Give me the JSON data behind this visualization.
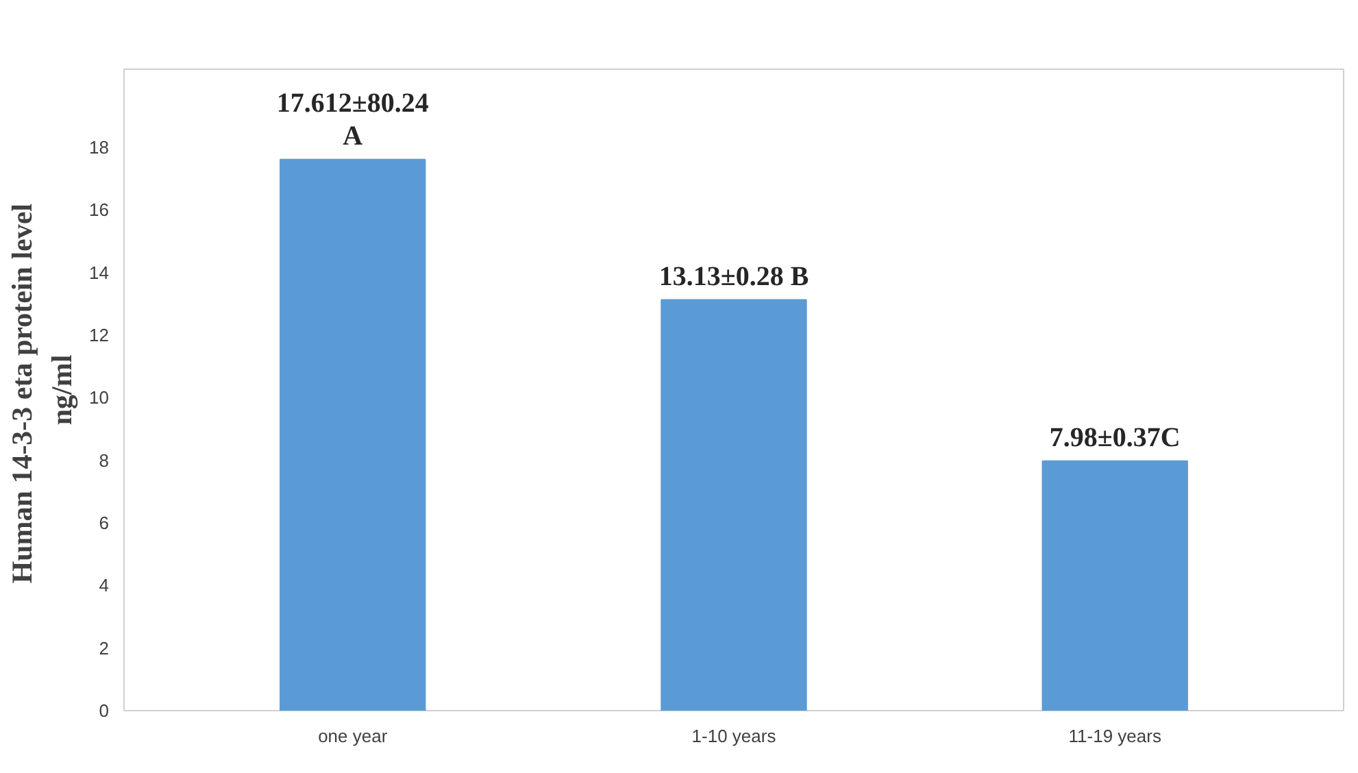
{
  "chart_data": {
    "type": "bar",
    "ylabel": "Human  14-3-3 eta protein level\nng/ml",
    "categories": [
      "one year",
      "1-10 years",
      "11-19 years"
    ],
    "values": [
      17.612,
      13.13,
      7.98
    ],
    "value_labels": [
      "17.612±80.24\nA",
      "13.13±0.28 B",
      "7.98±0.37C"
    ],
    "color": "#5b9bd5",
    "ylim": [
      0,
      20.5
    ],
    "yticks": [
      0,
      2,
      4,
      6,
      8,
      10,
      12,
      14,
      16,
      18
    ],
    "grid": false
  }
}
